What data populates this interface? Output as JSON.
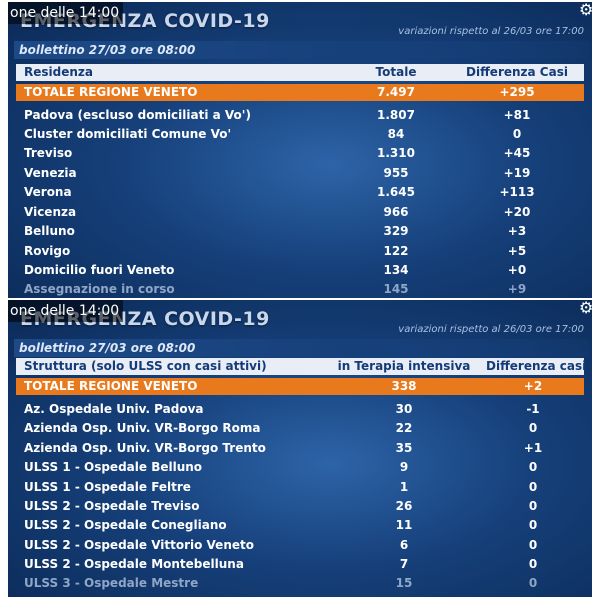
{
  "overlay_text": "one delle 14:00",
  "title": "EMERGENZA COVID-19",
  "top": {
    "variation": "variazioni rispetto al 26/03 ore 17:00",
    "bulletin": "bollettino 27/03 ore 08:00",
    "headers": [
      "Residenza",
      "Totale",
      "Differenza Casi"
    ],
    "total": [
      "TOTALE REGIONE VENETO",
      "7.497",
      "+295"
    ],
    "rows": [
      [
        "Padova (escluso domiciliati a Vo')",
        "1.807",
        "+81"
      ],
      [
        "Cluster domiciliati Comune Vo'",
        "84",
        "0"
      ],
      [
        "Treviso",
        "1.310",
        "+45"
      ],
      [
        "Venezia",
        "955",
        "+19"
      ],
      [
        "Verona",
        "1.645",
        "+113"
      ],
      [
        "Vicenza",
        "966",
        "+20"
      ],
      [
        "Belluno",
        "329",
        "+3"
      ],
      [
        "Rovigo",
        "122",
        "+5"
      ],
      [
        "Domicilio fuori Veneto",
        "134",
        "+0"
      ],
      [
        "Assegnazione in corso",
        "145",
        "+9"
      ]
    ]
  },
  "bottom": {
    "variation": "variazioni rispetto al 26/03 ore 17:00",
    "bulletin": "bollettino 27/03 ore 08:00",
    "headers": [
      "Struttura (solo ULSS con casi attivi)",
      "in Terapia intensiva",
      "Differenza casi"
    ],
    "total": [
      "TOTALE REGIONE VENETO",
      "338",
      "+2"
    ],
    "rows": [
      [
        "Az. Ospedale Univ. Padova",
        "30",
        "-1"
      ],
      [
        "Azienda Osp. Univ. VR-Borgo Roma",
        "22",
        "0"
      ],
      [
        "Azienda Osp. Univ. VR-Borgo Trento",
        "35",
        "+1"
      ],
      [
        "ULSS 1 - Ospedale Belluno",
        "9",
        "0"
      ],
      [
        "ULSS 1 - Ospedale Feltre",
        "1",
        "0"
      ],
      [
        "ULSS 2 - Ospedale Treviso",
        "26",
        "0"
      ],
      [
        "ULSS 2 - Ospedale Conegliano",
        "11",
        "0"
      ],
      [
        "ULSS 2 - Ospedale Vittorio Veneto",
        "6",
        "0"
      ],
      [
        "ULSS 2 - Ospedale Montebelluna",
        "7",
        "0"
      ],
      [
        "ULSS 3 - Ospedale Mestre",
        "15",
        "0"
      ]
    ]
  }
}
